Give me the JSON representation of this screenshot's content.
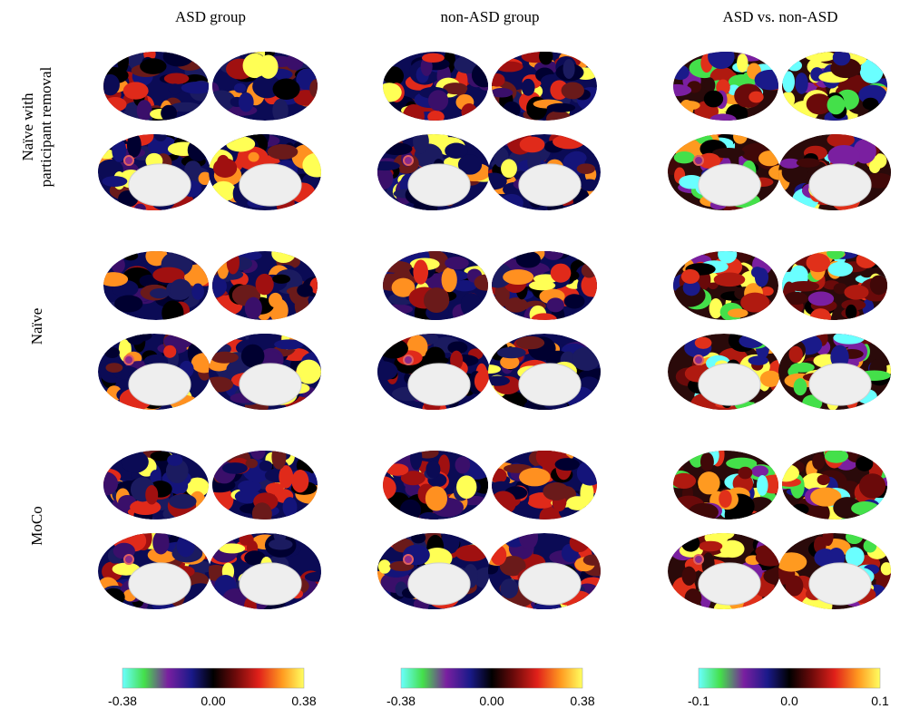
{
  "column_titles": [
    "ASD group",
    "non-ASD group",
    "ASD vs. non-ASD"
  ],
  "row_labels": [
    [
      "Naïve with",
      "participant removal"
    ],
    [
      "Naïve"
    ],
    [
      "MoCo"
    ]
  ],
  "colorbars": [
    {
      "ticks": [
        "-0.38",
        "0.00",
        "0.38"
      ]
    },
    {
      "ticks": [
        "-0.38",
        "0.00",
        "0.38"
      ]
    },
    {
      "ticks": [
        "-0.1",
        "0.0",
        "0.1"
      ]
    }
  ]
}
